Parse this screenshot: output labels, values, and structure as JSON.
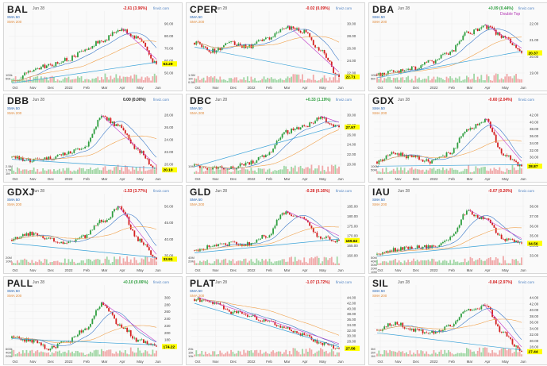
{
  "colors": {
    "up": "#2e9e3f",
    "down": "#d42020",
    "sma50": "#3a78c8",
    "sma200": "#f0a04a",
    "trend_magenta": "#c03ac8",
    "trend_blue": "#3aa2d8",
    "price_label_bg": "#ffff00",
    "vol_up": "#9fd6a4",
    "vol_down": "#f0a8a8"
  },
  "panels": [
    {
      "ticker": "BAL",
      "date": "Jun 28",
      "change": "-2.61 (3.96%)",
      "change_dir": "down",
      "source": "finviz.com",
      "sma50": "SMA 50",
      "sma200": "SMA 200",
      "price_label": "63.29",
      "y_ticks": [
        "90.00",
        "80.00",
        "70.00",
        "60.00",
        "50.00"
      ],
      "vol_ticks": [
        "100k",
        "50k"
      ],
      "x_ticks": [
        "Oct",
        "Nov",
        "Dec",
        "2022",
        "Feb",
        "Mar",
        "Apr",
        "May",
        "Jun"
      ],
      "annotation": ""
    },
    {
      "ticker": "CPER",
      "date": "Jun 28",
      "change": "-0.02 (0.09%)",
      "change_dir": "down",
      "source": "finviz.com",
      "sma50": "SMA 50",
      "sma200": "SMA 200",
      "price_label": "22.71",
      "y_ticks": [
        "30.00",
        "28.00",
        "26.00",
        "24.00",
        "22.00"
      ],
      "vol_ticks": [
        "1.5M",
        "1M",
        "0.5M"
      ],
      "x_ticks": [
        "Oct",
        "Nov",
        "Dec",
        "2022",
        "Feb",
        "Mar",
        "Apr",
        "May",
        "Jun"
      ],
      "annotation": ""
    },
    {
      "ticker": "DBA",
      "date": "Jun 28",
      "change": "+0.09 (0.44%)",
      "change_dir": "up",
      "source": "finviz.com",
      "sma50": "SMA 50",
      "sma200": "SMA 200",
      "price_label": "20.37",
      "y_ticks": [
        "22.00",
        "21.00",
        "20.00",
        "19.00"
      ],
      "vol_ticks": [
        "10M",
        "5M"
      ],
      "x_ticks": [
        "Oct",
        "Nov",
        "Dec",
        "2022",
        "Feb",
        "Mar",
        "Apr",
        "May",
        "Jun"
      ],
      "annotation": "Double Top"
    },
    {
      "ticker": "DBB",
      "date": "Jun 28",
      "change": "0.00 (0.00%)",
      "change_dir": "flat",
      "source": "finviz.com",
      "sma50": "SMA 50",
      "sma200": "SMA 200",
      "price_label": "20.10",
      "y_ticks": [
        "28.00",
        "26.00",
        "24.00",
        "22.00",
        "20.00"
      ],
      "vol_ticks": [
        "2.5M",
        "1.5M",
        "1M"
      ],
      "x_ticks": [
        "Oct",
        "Nov",
        "Dec",
        "2022",
        "Feb",
        "Mar",
        "Apr",
        "May",
        "Jun"
      ],
      "annotation": ""
    },
    {
      "ticker": "DBC",
      "date": "Jun 28",
      "change": "+0.33 (1.19%)",
      "change_dir": "up",
      "source": "finviz.com",
      "sma50": "SMA 50",
      "sma200": "SMA 200",
      "price_label": "27.97",
      "y_ticks": [
        "30.00",
        "28.00",
        "26.00",
        "24.00",
        "22.00",
        "20.00"
      ],
      "vol_ticks": [
        "10M"
      ],
      "x_ticks": [
        "Oct",
        "Nov",
        "Dec",
        "2022",
        "Feb",
        "Mar",
        "Apr",
        "May",
        "Jun"
      ],
      "annotation": ""
    },
    {
      "ticker": "GDX",
      "date": "Jun 28",
      "change": "-0.60 (2.04%)",
      "change_dir": "down",
      "source": "finviz.com",
      "sma50": "SMA 50",
      "sma200": "SMA 200",
      "price_label": "28.87",
      "y_ticks": [
        "42.00",
        "40.00",
        "38.00",
        "36.00",
        "34.00",
        "32.00",
        "30.00",
        "28.00"
      ],
      "vol_ticks": [
        "100M",
        "50M"
      ],
      "x_ticks": [
        "Oct",
        "Nov",
        "Dec",
        "2022",
        "Feb",
        "Mar",
        "Apr",
        "May",
        "Jun"
      ],
      "annotation": ""
    },
    {
      "ticker": "GDXJ",
      "date": "Jun 28",
      "change": "-1.53 (3.77%)",
      "change_dir": "down",
      "source": "finviz.com",
      "sma50": "SMA 50",
      "sma200": "SMA 200",
      "price_label": "33.91",
      "y_ticks": [
        "50.00",
        "45.00",
        "40.00",
        "35.00"
      ],
      "vol_ticks": [
        "20M",
        "10M"
      ],
      "x_ticks": [
        "Oct",
        "Nov",
        "Dec",
        "2022",
        "Feb",
        "Mar",
        "Apr",
        "May",
        "Jun"
      ],
      "annotation": ""
    },
    {
      "ticker": "GLD",
      "date": "Jun 28",
      "change": "-0.28 (0.16%)",
      "change_dir": "down",
      "source": "finviz.com",
      "sma50": "SMA 50",
      "sma200": "SMA 200",
      "price_label": "169.62",
      "y_ticks": [
        "185.00",
        "180.00",
        "175.00",
        "170.00",
        "165.00",
        "160.00"
      ],
      "vol_ticks": [
        "40M",
        "20M"
      ],
      "x_ticks": [
        "Oct",
        "Nov",
        "Dec",
        "2022",
        "Feb",
        "Mar",
        "Apr",
        "May",
        "Jun"
      ],
      "annotation": ""
    },
    {
      "ticker": "IAU",
      "date": "Jun 28",
      "change": "-0.07 (0.20%)",
      "change_dir": "down",
      "source": "finviz.com",
      "sma50": "SMA 50",
      "sma200": "SMA 200",
      "price_label": "34.56",
      "y_ticks": [
        "38.00",
        "37.00",
        "36.00",
        "35.00",
        "34.00",
        "33.00"
      ],
      "vol_ticks": [
        "50M",
        "40M",
        "30M",
        "20M",
        "10M"
      ],
      "x_ticks": [
        "Oct",
        "Nov",
        "Dec",
        "2022",
        "Feb",
        "Mar",
        "Apr",
        "May",
        "Jun"
      ],
      "annotation": ""
    },
    {
      "ticker": "PALL",
      "date": "Jun 28",
      "change": "+0.10 (0.06%)",
      "change_dir": "up",
      "source": "finviz.com",
      "sma50": "SMA 50",
      "sma200": "SMA 200",
      "price_label": "174.22",
      "y_ticks": [
        "300",
        "280",
        "260",
        "240",
        "220",
        "200",
        "180",
        "160"
      ],
      "vol_ticks": [
        "600k",
        "400k",
        "200k"
      ],
      "x_ticks": [
        "Oct",
        "Nov",
        "Dec",
        "2022",
        "Feb",
        "Mar",
        "Apr",
        "May",
        "Jun"
      ],
      "annotation": ""
    },
    {
      "ticker": "PLAT",
      "date": "Jun 28",
      "change": "-1.07 (3.72%)",
      "change_dir": "down",
      "source": "finviz.com",
      "sma50": "SMA 50",
      "sma200": "SMA 200",
      "price_label": "27.56",
      "y_ticks": [
        "44.00",
        "42.00",
        "40.00",
        "38.00",
        "36.00",
        "34.00",
        "32.00",
        "30.00",
        "28.00",
        "26.00"
      ],
      "vol_ticks": [
        "20k",
        "15k",
        "10k"
      ],
      "x_ticks": [
        "Oct",
        "Nov",
        "Dec",
        "2022",
        "Feb",
        "Mar",
        "Apr",
        "May",
        "Jun"
      ],
      "annotation": ""
    },
    {
      "ticker": "SIL",
      "date": "Jun 28",
      "change": "-0.84 (2.97%)",
      "change_dir": "down",
      "source": "finviz.com",
      "sma50": "SMA 50",
      "sma200": "SMA 200",
      "price_label": "27.44",
      "y_ticks": [
        "44.00",
        "42.00",
        "40.00",
        "38.00",
        "36.00",
        "34.00",
        "32.00",
        "30.00",
        "28.00"
      ],
      "vol_ticks": [
        "3M",
        "2M",
        "1M"
      ],
      "x_ticks": [
        "Oct",
        "Nov",
        "Dec",
        "2022",
        "Feb",
        "Mar",
        "Apr",
        "May",
        "Jun"
      ],
      "annotation": ""
    }
  ],
  "chart_data": [
    {
      "type": "line",
      "ticker": "BAL",
      "x": [
        "Oct",
        "Nov",
        "Dec",
        "2022",
        "Feb",
        "Mar",
        "Apr",
        "May",
        "Jun"
      ],
      "ylim": [
        50,
        95
      ],
      "series": [
        {
          "values": [
            50,
            58,
            62,
            66,
            72,
            80,
            88,
            82,
            63.29
          ]
        }
      ]
    },
    {
      "type": "line",
      "ticker": "CPER",
      "x": [
        "Oct",
        "Nov",
        "Dec",
        "2022",
        "Feb",
        "Mar",
        "Apr",
        "May",
        "Jun"
      ],
      "ylim": [
        22,
        30
      ],
      "series": [
        {
          "values": [
            27,
            26,
            27,
            26.5,
            27.5,
            29,
            28.5,
            26,
            22.71
          ]
        }
      ]
    },
    {
      "type": "line",
      "ticker": "DBA",
      "x": [
        "Oct",
        "Nov",
        "Dec",
        "2022",
        "Feb",
        "Mar",
        "Apr",
        "May",
        "Jun"
      ],
      "ylim": [
        18.5,
        22.5
      ],
      "series": [
        {
          "values": [
            19,
            19.2,
            19.4,
            19.8,
            20.4,
            21.6,
            22,
            21.4,
            20.37
          ]
        }
      ]
    },
    {
      "type": "line",
      "ticker": "DBB",
      "x": [
        "Oct",
        "Nov",
        "Dec",
        "2022",
        "Feb",
        "Mar",
        "Apr",
        "May",
        "Jun"
      ],
      "ylim": [
        19.5,
        29
      ],
      "series": [
        {
          "values": [
            22,
            21.5,
            21.8,
            22.5,
            23.5,
            28,
            26.5,
            23,
            20.1
          ]
        }
      ]
    },
    {
      "type": "line",
      "ticker": "DBC",
      "x": [
        "Oct",
        "Nov",
        "Dec",
        "2022",
        "Feb",
        "Mar",
        "Apr",
        "May",
        "Jun"
      ],
      "ylim": [
        19.5,
        31
      ],
      "series": [
        {
          "values": [
            21,
            20.5,
            20.5,
            21.5,
            23,
            27,
            28,
            29.5,
            27.97
          ]
        }
      ]
    },
    {
      "type": "line",
      "ticker": "GDX",
      "x": [
        "Oct",
        "Nov",
        "Dec",
        "2022",
        "Feb",
        "Mar",
        "Apr",
        "May",
        "Jun"
      ],
      "ylim": [
        27,
        42.5
      ],
      "series": [
        {
          "values": [
            30,
            32,
            31,
            30,
            32,
            38,
            40,
            32,
            28.87
          ]
        }
      ]
    },
    {
      "type": "line",
      "ticker": "GDXJ",
      "x": [
        "Oct",
        "Nov",
        "Dec",
        "2022",
        "Feb",
        "Mar",
        "Apr",
        "May",
        "Jun"
      ],
      "ylim": [
        32,
        52
      ],
      "series": [
        {
          "values": [
            40,
            42,
            40,
            39,
            41,
            46,
            50,
            40,
            33.91
          ]
        }
      ]
    },
    {
      "type": "line",
      "ticker": "GLD",
      "x": [
        "Oct",
        "Nov",
        "Dec",
        "2022",
        "Feb",
        "Mar",
        "Apr",
        "May",
        "Jun"
      ],
      "ylim": [
        158,
        188
      ],
      "series": [
        {
          "values": [
            165,
            167,
            168,
            168,
            172,
            183,
            180,
            171,
            169.62
          ]
        }
      ]
    },
    {
      "type": "line",
      "ticker": "IAU",
      "x": [
        "Oct",
        "Nov",
        "Dec",
        "2022",
        "Feb",
        "Mar",
        "Apr",
        "May",
        "Jun"
      ],
      "ylim": [
        32.5,
        38.5
      ],
      "series": [
        {
          "values": [
            33.5,
            34,
            34.2,
            34.2,
            35,
            37.5,
            36.8,
            35,
            34.56
          ]
        }
      ]
    },
    {
      "type": "line",
      "ticker": "PALL",
      "x": [
        "Oct",
        "Nov",
        "Dec",
        "2022",
        "Feb",
        "Mar",
        "Apr",
        "May",
        "Jun"
      ],
      "ylim": [
        150,
        305
      ],
      "series": [
        {
          "values": [
            195,
            190,
            170,
            185,
            215,
            280,
            225,
            190,
            174.22
          ]
        }
      ]
    },
    {
      "type": "line",
      "ticker": "PLAT",
      "x": [
        "Oct",
        "Nov",
        "Dec",
        "2022",
        "Feb",
        "Mar",
        "Apr",
        "May",
        "Jun"
      ],
      "ylim": [
        25,
        45
      ],
      "series": [
        {
          "values": [
            43,
            42,
            39,
            38,
            36,
            34,
            32,
            29,
            27.56
          ]
        }
      ]
    },
    {
      "type": "line",
      "ticker": "SIL",
      "x": [
        "Oct",
        "Nov",
        "Dec",
        "2022",
        "Feb",
        "Mar",
        "Apr",
        "May",
        "Jun"
      ],
      "ylim": [
        26,
        45
      ],
      "series": [
        {
          "values": [
            34,
            36,
            34,
            33,
            35,
            40,
            41,
            33,
            27.44
          ]
        }
      ]
    }
  ]
}
